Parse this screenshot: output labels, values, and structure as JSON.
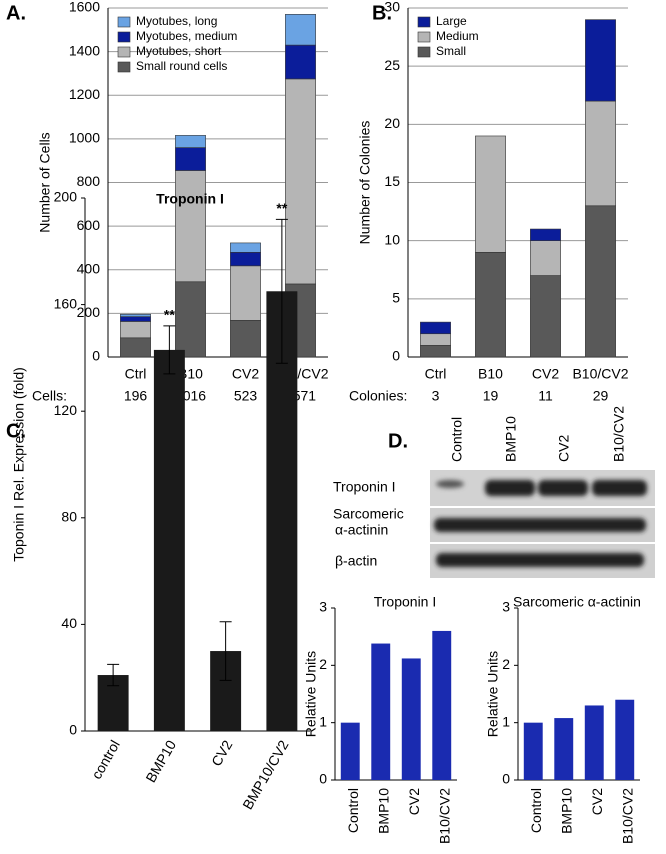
{
  "panel_labels": [
    "A.",
    "B.",
    "C.",
    "D."
  ],
  "blot": {
    "lanes": [
      "Control",
      "BMP10",
      "CV2",
      "B10/CV2"
    ],
    "rows": [
      [
        "Troponin I"
      ],
      [
        "Sarcomeric",
        "α-actinin"
      ],
      [
        "β-actin"
      ]
    ]
  },
  "chart_data": [
    {
      "type": "stacked_bar",
      "y_label": "Number of Cells",
      "categories": [
        "Ctrl",
        "B10",
        "CV2",
        "B10/CV2"
      ],
      "series": [
        {
          "name": "Small round cells",
          "color": "#595959",
          "values": [
            88,
            345,
            168,
            335
          ]
        },
        {
          "name": "Myotubes, short",
          "color": "#b5b5b5",
          "values": [
            75,
            510,
            250,
            940
          ]
        },
        {
          "name": "Myotubes, medium",
          "color": "#0b1d9a",
          "values": [
            22,
            105,
            62,
            155
          ]
        },
        {
          "name": "Myotubes, long",
          "color": "#6aa3e3",
          "values": [
            11,
            56,
            43,
            141
          ]
        }
      ],
      "totals_label": "Cells:",
      "totals": [
        196,
        1016,
        523,
        1571
      ],
      "ylim": [
        0,
        1600
      ],
      "yticks": [
        0,
        200,
        400,
        600,
        800,
        1000,
        1200,
        1400,
        1600
      ],
      "grid": true,
      "legend": "upper left"
    },
    {
      "type": "stacked_bar",
      "y_label": "Number of  Colonies",
      "categories": [
        "Ctrl",
        "B10",
        "CV2",
        "B10/CV2"
      ],
      "series": [
        {
          "name": "Small",
          "color": "#595959",
          "values": [
            1,
            9,
            7,
            13
          ]
        },
        {
          "name": "Medium",
          "color": "#b5b5b5",
          "values": [
            1,
            10,
            3,
            9
          ]
        },
        {
          "name": "Large",
          "color": "#0b1d9a",
          "values": [
            1,
            0,
            1,
            7
          ]
        }
      ],
      "totals_label": "Colonies:",
      "totals": [
        3,
        19,
        11,
        29
      ],
      "ylim": [
        0,
        30
      ],
      "yticks": [
        0,
        5,
        10,
        15,
        20,
        25,
        30
      ],
      "grid": true,
      "legend": "upper left"
    },
    {
      "type": "bar",
      "title": "Troponin I",
      "y_label": "Toponin I Rel. Expression (fold)",
      "categories": [
        "control",
        "BMP10",
        "CV2",
        "BMP10/CV2"
      ],
      "values": [
        21,
        143,
        30,
        165
      ],
      "errors": [
        4,
        9,
        11,
        27
      ],
      "value_annotations": [
        null,
        "**",
        null,
        "**"
      ],
      "color": "#1a1a1a",
      "ylim": [
        0,
        200
      ],
      "yticks": [
        0,
        40,
        80,
        120,
        160,
        200
      ],
      "grid": false
    },
    {
      "type": "bar",
      "title": "Troponin I",
      "y_label": "Relative Units",
      "categories": [
        "Control",
        "BMP10",
        "CV2",
        "B10/CV2"
      ],
      "values": [
        1,
        2.38,
        2.12,
        2.6
      ],
      "color": "#1a2bb0",
      "ylim": [
        0,
        3
      ],
      "yticks": [
        0,
        1,
        2,
        3
      ],
      "grid": false
    },
    {
      "type": "bar",
      "title": "Sarcomeric α-actinin",
      "y_label": "Relative Units",
      "categories": [
        "Control",
        "BMP10",
        "CV2",
        "B10/CV2"
      ],
      "values": [
        1,
        1.08,
        1.3,
        1.4
      ],
      "color": "#1a2bb0",
      "ylim": [
        0,
        3
      ],
      "yticks": [
        0,
        1,
        2,
        3
      ],
      "grid": false
    }
  ]
}
